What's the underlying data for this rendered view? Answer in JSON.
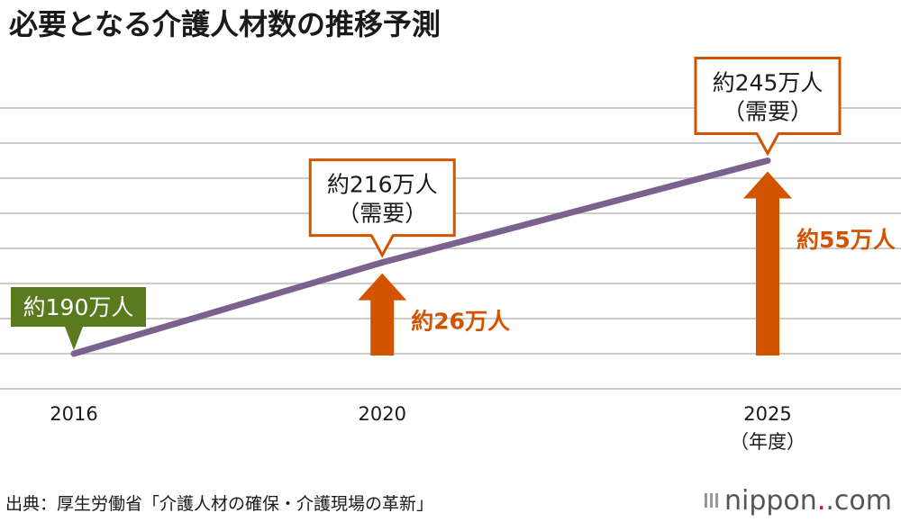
{
  "chart_data": {
    "type": "line",
    "title": "必要となる介護人材数の推移予測",
    "x": [
      2016,
      2020,
      2025
    ],
    "xtick_labels": [
      "2016",
      "2020",
      "2025"
    ],
    "xunit_label": "（年度）",
    "series": [
      {
        "values": [
          190,
          216,
          245
        ]
      }
    ],
    "ylim": [
      180,
      260
    ],
    "grid": true,
    "point_labels": [
      {
        "line1": "約190万人",
        "line2": ""
      },
      {
        "line1": "約216万人",
        "line2": "（需要）"
      },
      {
        "line1": "約245万人",
        "line2": "（需要）"
      }
    ],
    "increases": [
      {
        "x": 2020,
        "value": 26,
        "label": "約26万人"
      },
      {
        "x": 2025,
        "value": 55,
        "label": "約55万人"
      }
    ]
  },
  "source": "出典：厚生労働省「介護人材の確保・介護現場の革新」",
  "logo": {
    "text": "nippon",
    "suffix": ".com",
    "accent_dot": "."
  },
  "colors": {
    "line": "#7a628e",
    "arrow": "#d35400",
    "callout_border": "#d35400",
    "base_label_bg": "#5a7a1e",
    "grid": "#cccccc"
  }
}
